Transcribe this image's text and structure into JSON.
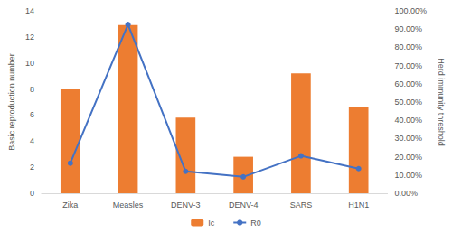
{
  "chart_data": {
    "type": "bar",
    "categories": [
      "Zika",
      "Measles",
      "DENV-3",
      "DENV-4",
      "SARS",
      "H1N1"
    ],
    "series": [
      {
        "name": "Ic",
        "type": "bar",
        "color": "#ED7D31",
        "values": [
          8,
          12.9,
          5.8,
          2.8,
          9.2,
          6.6
        ]
      },
      {
        "name": "R0",
        "type": "line",
        "color": "#4472C4",
        "axis": "y2",
        "marker": "circle",
        "values": [
          16.5,
          92.5,
          12,
          9,
          20.5,
          13.5
        ]
      }
    ],
    "y_label": "Basic reproduction number",
    "y2_label": "Herd immunity threshold",
    "ylim": [
      0,
      14
    ],
    "yticks": [
      0,
      2,
      4,
      6,
      8,
      10,
      12,
      14
    ],
    "y2lim": [
      0,
      100
    ],
    "y2ticks": [
      {
        "value": 0,
        "label": "0.00%"
      },
      {
        "value": 10,
        "label": "10.00%"
      },
      {
        "value": 20,
        "label": "20.00%"
      },
      {
        "value": 30,
        "label": "30.00%"
      },
      {
        "value": 40,
        "label": "40.00%"
      },
      {
        "value": 50,
        "label": "50.00%"
      },
      {
        "value": 60,
        "label": "60.00%"
      },
      {
        "value": 70,
        "label": "70.00%"
      },
      {
        "value": 80,
        "label": "80.00%"
      },
      {
        "value": 90,
        "label": "90.00%"
      },
      {
        "value": 100,
        "label": "100.00%"
      }
    ],
    "grid": false,
    "legend": "bottom"
  }
}
